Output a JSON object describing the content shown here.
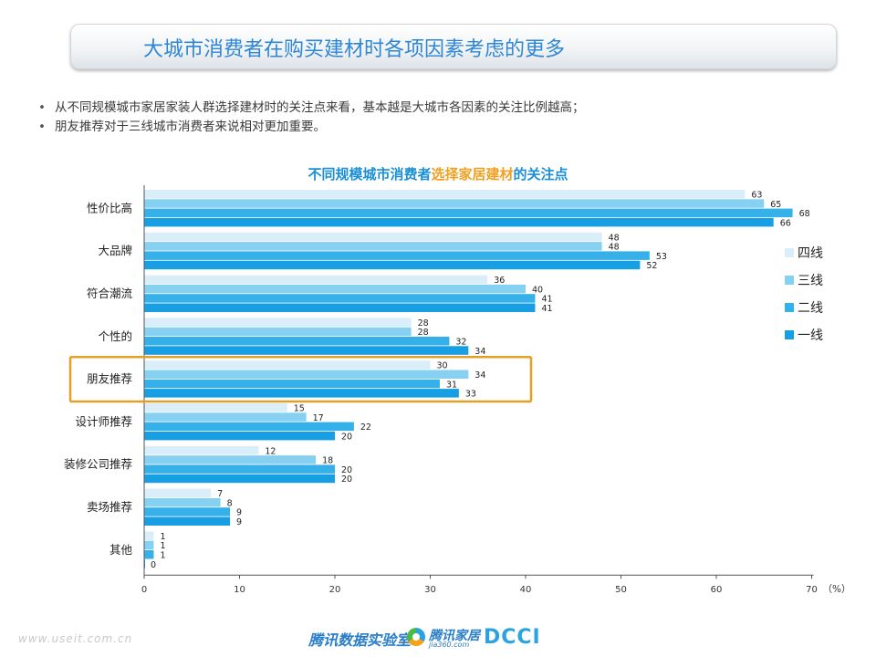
{
  "header": {
    "title": "大城市消费者在购买建材时各项因素考虑的更多"
  },
  "bullets": [
    "从不同规模城市家居家装人群选择建材时的关注点来看，基本越是大城市各因素的关注比例越高；",
    "朋友推荐对于三线城市消费者来说相对更加重要。"
  ],
  "chart_title": {
    "part1": "不同规模城市消费者",
    "part2": "选择家居建材",
    "part3": "的关注点"
  },
  "footer": {
    "url": "www.useit.com.cn",
    "brand1": "腾讯数据实验室",
    "brand2": "腾讯家居",
    "brand2_sub": "jia360.com",
    "brand3": "DCCI"
  },
  "colors": {
    "title": "#1a8fd8",
    "highlight": "#f0a020",
    "highlight_box": "#e3a024"
  },
  "chart_data": {
    "type": "bar",
    "orientation": "horizontal",
    "categories": [
      "性价比高",
      "大品牌",
      "符合潮流",
      "个性的",
      "朋友推荐",
      "设计师推荐",
      "装修公司推荐",
      "卖场推荐",
      "其他"
    ],
    "series": [
      {
        "name": "四线",
        "color": "#d9eef9",
        "values": [
          63,
          48,
          36,
          28,
          30,
          15,
          12,
          7,
          1
        ]
      },
      {
        "name": "三线",
        "color": "#86d1f1",
        "values": [
          65,
          48,
          40,
          28,
          34,
          17,
          18,
          8,
          1
        ]
      },
      {
        "name": "二线",
        "color": "#36b0e8",
        "values": [
          68,
          53,
          41,
          32,
          31,
          22,
          20,
          9,
          1
        ]
      },
      {
        "name": "一线",
        "color": "#189ee2",
        "values": [
          66,
          52,
          41,
          34,
          33,
          20,
          20,
          9,
          0
        ]
      }
    ],
    "xlim": [
      0,
      70
    ],
    "xticks": [
      0,
      10,
      20,
      30,
      40,
      50,
      60,
      70
    ],
    "unit": "（%）",
    "legend_position": "right",
    "legend_order": [
      "四线",
      "三线",
      "二线",
      "一线"
    ],
    "highlighted_category": "朋友推荐",
    "grid": false
  }
}
